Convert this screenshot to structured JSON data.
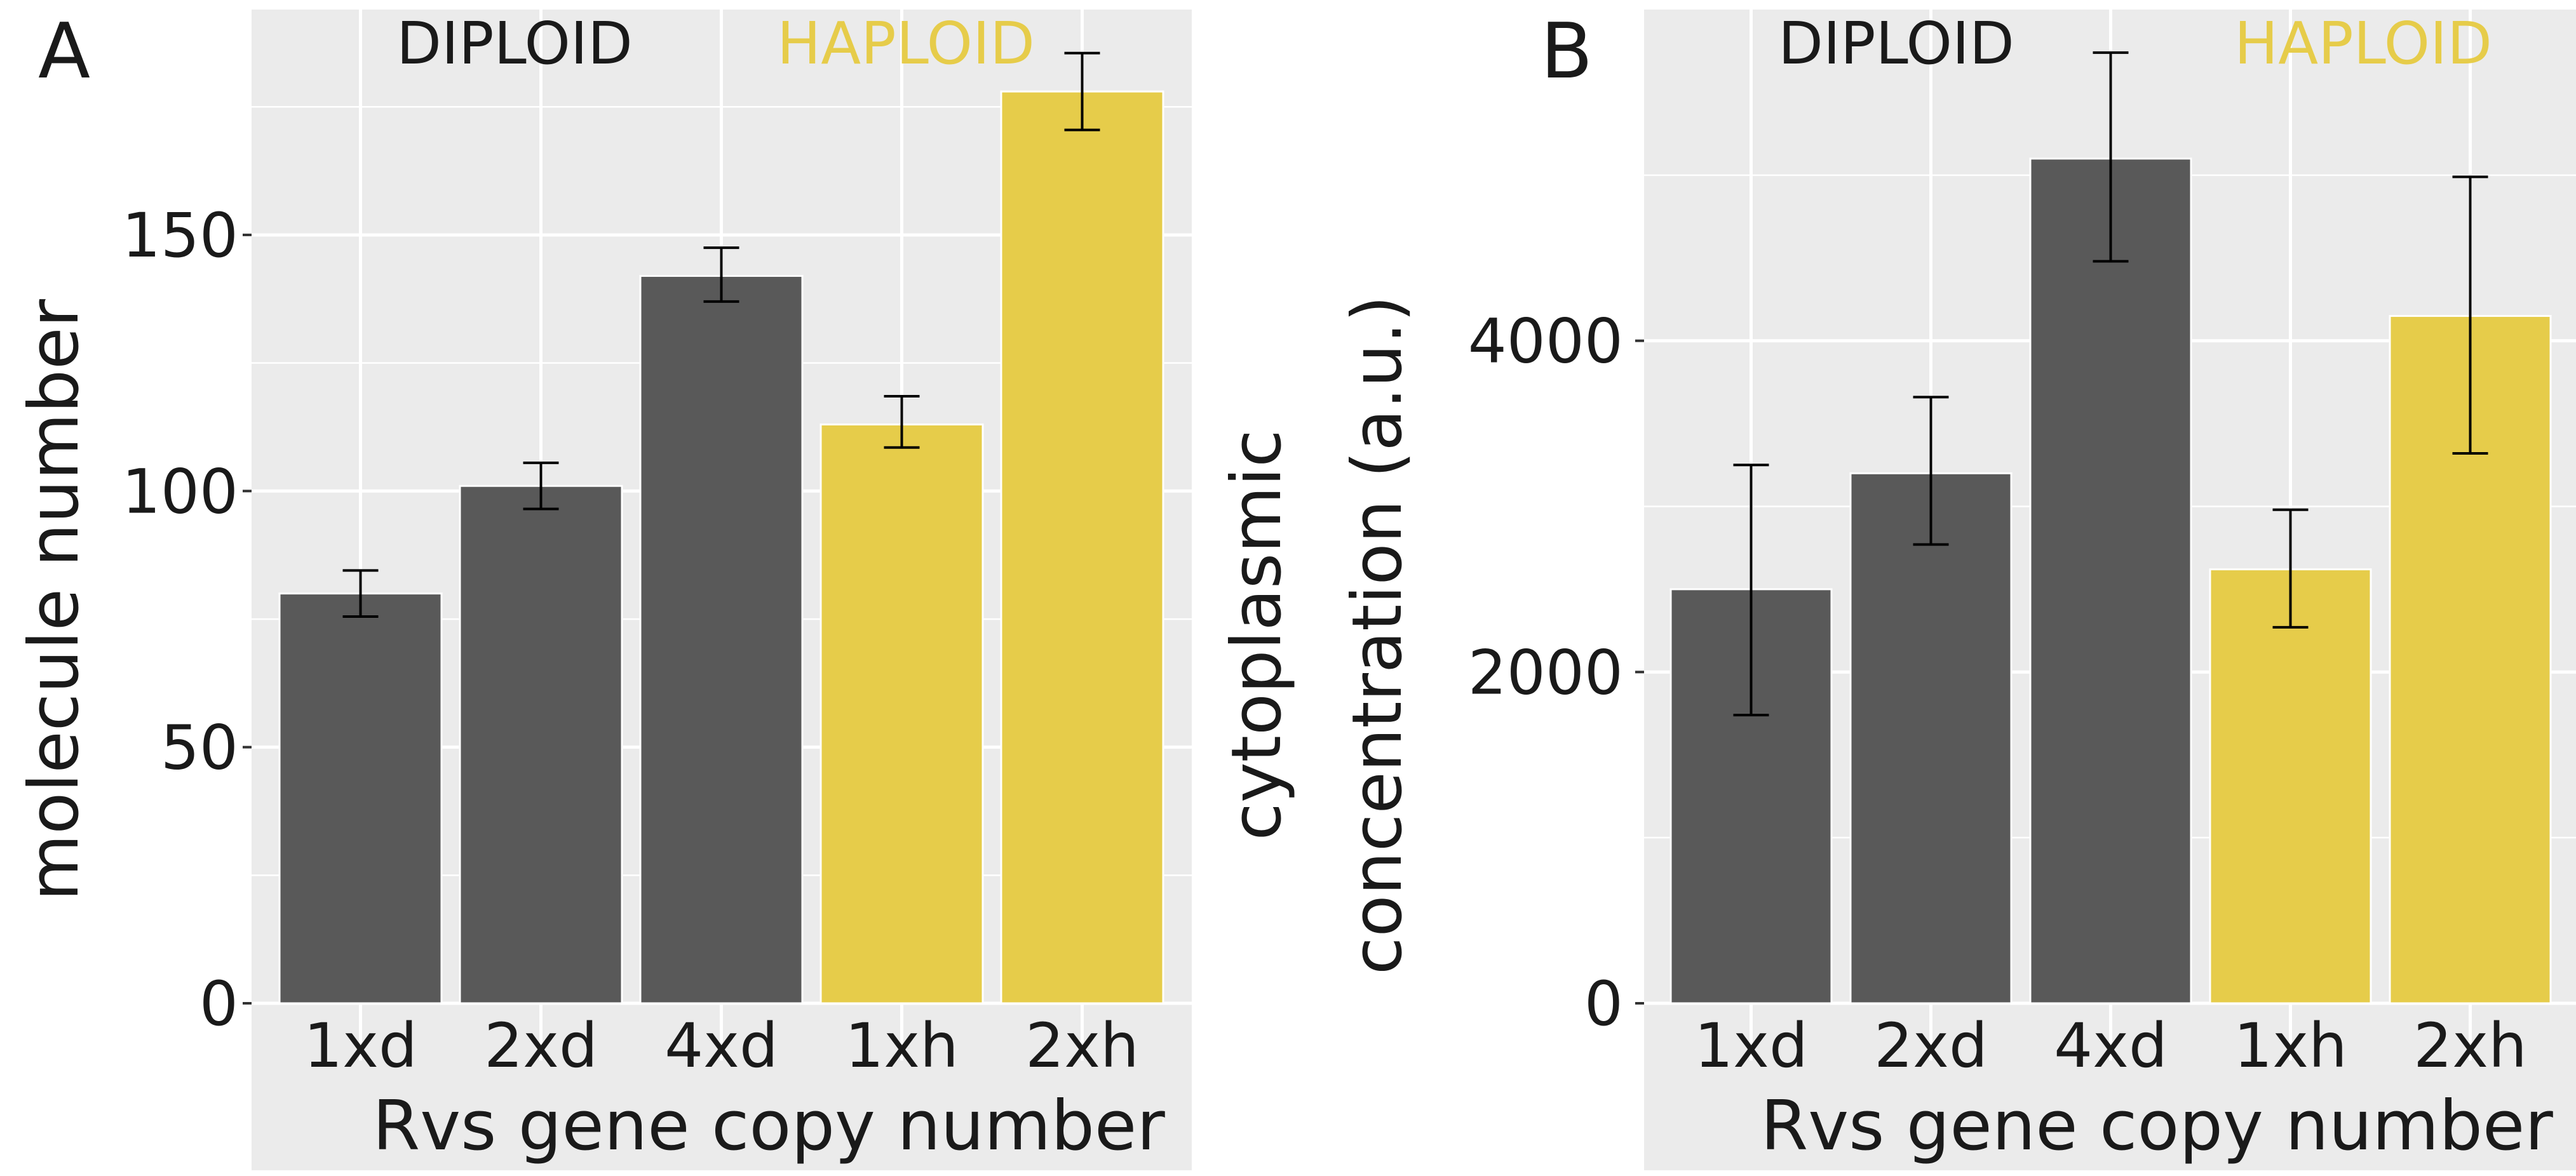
{
  "colors": {
    "panel_bg": "#ebebeb",
    "grid": "#ffffff",
    "diploid_bar": "#595959",
    "haploid_bar": "#e6cc4a",
    "diploid_text": "#1a1a1a",
    "haploid_text": "#e6cc4a",
    "error_bar": "#000000"
  },
  "chart_data": [
    {
      "type": "bar",
      "panel_label": "A",
      "group_labels": [
        "DIPLOID",
        "HAPLOID"
      ],
      "categories": [
        "1xd",
        "2xd",
        "4xd",
        "1xh",
        "2xh"
      ],
      "groups": [
        "diploid",
        "diploid",
        "diploid",
        "haploid",
        "haploid"
      ],
      "values": [
        80,
        101,
        142,
        113,
        178
      ],
      "error_low": [
        75.5,
        96.5,
        137,
        108.5,
        170.5
      ],
      "error_high": [
        84.5,
        105.5,
        147.5,
        118.5,
        185.5
      ],
      "xlabel": "Rvs gene copy number",
      "ylabel": "molecule number",
      "yticks": [
        0,
        50,
        100,
        150
      ],
      "ylim": [
        0,
        194
      ],
      "grid": true
    },
    {
      "type": "bar",
      "panel_label": "B",
      "group_labels": [
        "DIPLOID",
        "HAPLOID"
      ],
      "categories": [
        "1xd",
        "2xd",
        "4xd",
        "1xh",
        "2xh"
      ],
      "groups": [
        "diploid",
        "diploid",
        "diploid",
        "haploid",
        "haploid"
      ],
      "values": [
        2500,
        3200,
        5100,
        2620,
        4150
      ],
      "error_low": [
        1740,
        2770,
        4480,
        2270,
        3320
      ],
      "error_high": [
        3250,
        3660,
        5740,
        2980,
        4990
      ],
      "xlabel": "Rvs gene copy number",
      "ylabel_lines": [
        "cytoplasmic",
        "concentration (a.u.)"
      ],
      "yticks": [
        0,
        2000,
        4000
      ],
      "ylim": [
        0,
        6000
      ],
      "grid": true
    }
  ]
}
